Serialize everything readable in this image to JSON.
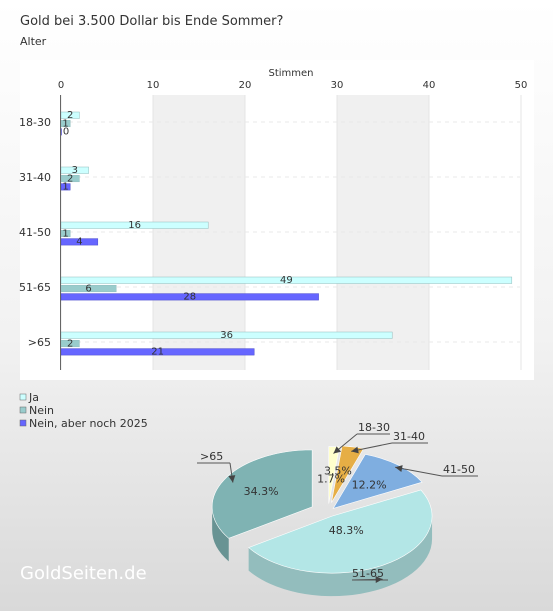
{
  "header": {
    "title": "Gold bei 3.500 Dollar bis Ende Sommer?",
    "subtitle": "Alter"
  },
  "watermark": "GoldSeiten.de",
  "chart_data": [
    {
      "type": "bar",
      "orientation": "horizontal",
      "xlabel": "Stimmen",
      "xlim": [
        0,
        50
      ],
      "xticks": [
        0,
        10,
        20,
        30,
        40,
        50
      ],
      "categories": [
        "18-30",
        "31-40",
        "41-50",
        "51-65",
        ">65"
      ],
      "series": [
        {
          "name": "Ja",
          "values": [
            2,
            3,
            16,
            49,
            36
          ],
          "color": "#ccffff"
        },
        {
          "name": "Nein",
          "values": [
            1,
            2,
            1,
            6,
            2
          ],
          "color": "#99cccc"
        },
        {
          "name": "Nein, aber noch 2025",
          "values": [
            0,
            1,
            4,
            28,
            21
          ],
          "color": "#6666ff"
        }
      ],
      "legend": "bottom-left",
      "grid": true
    },
    {
      "type": "pie",
      "style": "3d",
      "slices": [
        {
          "label": "18-30",
          "value": 1.7,
          "text": "1.7%",
          "color": "#ffffcc"
        },
        {
          "label": "31-40",
          "value": 3.5,
          "text": "3.5%",
          "color": "#e6ae45"
        },
        {
          "label": "41-50",
          "value": 12.2,
          "text": "12.2%",
          "color": "#7faee0"
        },
        {
          "label": "51-65",
          "value": 48.3,
          "text": "48.3%",
          "color": "#b3e6e6"
        },
        {
          "label": ">65",
          "value": 34.3,
          "text": "34.3%",
          "color": "#7fb3b3"
        }
      ]
    }
  ]
}
